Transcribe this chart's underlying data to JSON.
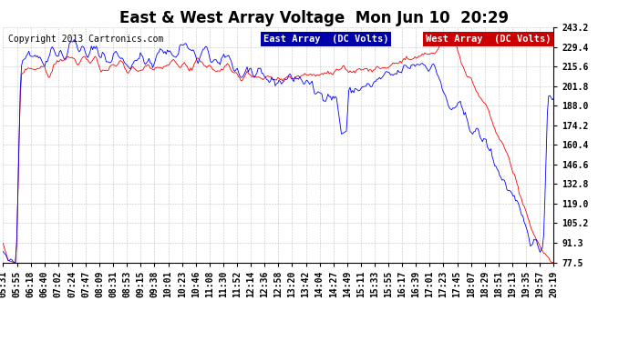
{
  "title": "East & West Array Voltage  Mon Jun 10  20:29",
  "copyright": "Copyright 2013 Cartronics.com",
  "legend_east": "East Array  (DC Volts)",
  "legend_west": "West Array  (DC Volts)",
  "east_color": "#0000FF",
  "west_color": "#FF0000",
  "legend_east_bg": "#0000AA",
  "legend_west_bg": "#CC0000",
  "bg_color": "#FFFFFF",
  "plot_bg_color": "#FFFFFF",
  "grid_color": "#AAAAAA",
  "ylim": [
    77.5,
    243.2
  ],
  "yticks": [
    77.5,
    91.3,
    105.2,
    119.0,
    132.8,
    146.6,
    160.4,
    174.2,
    188.0,
    201.8,
    215.6,
    229.4,
    243.2
  ],
  "title_fontsize": 12,
  "copyright_fontsize": 7,
  "tick_fontsize": 7,
  "legend_fontsize": 7.5
}
